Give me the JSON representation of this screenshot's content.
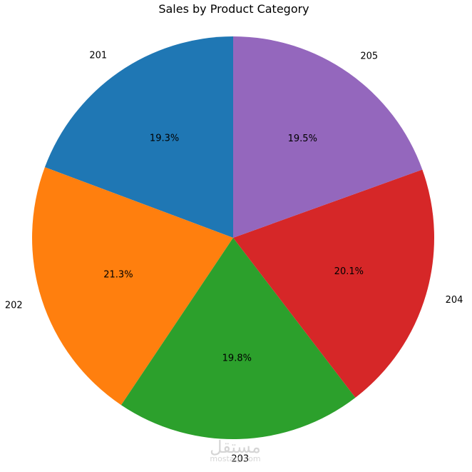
{
  "chart_data": {
    "type": "pie",
    "title": "Sales by Product Category",
    "categories": [
      "201",
      "202",
      "203",
      "204",
      "205"
    ],
    "values": [
      19.3,
      21.3,
      19.8,
      20.1,
      19.5
    ],
    "value_labels": [
      "19.3%",
      "21.3%",
      "19.8%",
      "20.1%",
      "19.5%"
    ],
    "colors": [
      "#1f77b4",
      "#ff7f0e",
      "#2ca02c",
      "#d62728",
      "#9467bd"
    ],
    "start_angle_deg": 90,
    "direction": "counterclockwise",
    "legend": "none"
  },
  "watermark": {
    "logo_text": "مستقل",
    "site_text": "mostaql.com"
  }
}
